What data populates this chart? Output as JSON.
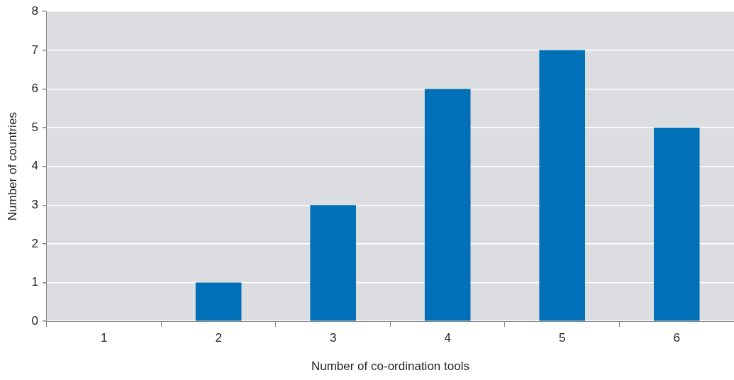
{
  "chart_data": {
    "type": "bar",
    "xlabel": "Number of co-ordination tools",
    "ylabel": "Number of countries",
    "categories": [
      "1",
      "2",
      "3",
      "4",
      "5",
      "6"
    ],
    "values": [
      0,
      1,
      3,
      6,
      7,
      5
    ],
    "color": "#0070b8",
    "ylim": [
      0,
      8
    ],
    "yticks": [
      0,
      1,
      2,
      3,
      4,
      5,
      6,
      7,
      8
    ],
    "grid": "y",
    "legend": false
  }
}
